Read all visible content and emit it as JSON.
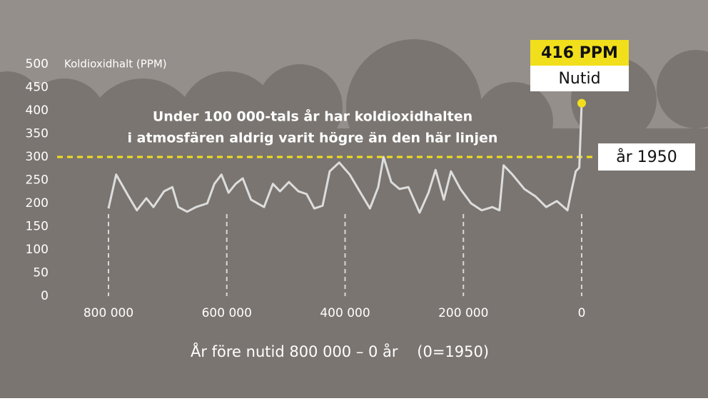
{
  "chart_data": {
    "type": "line",
    "ylabel": "Koldioxidhalt (PPM)",
    "xlabel": "År före nutid 800 000 – 0 år    (0=1950)",
    "annotation": [
      "Under 100 000-tals år har koldioxidhalten",
      "i atmosfären aldrig varit högre än den här linjen"
    ],
    "threshold": {
      "value": 300,
      "label": "år 1950",
      "color": "#f2df1c"
    },
    "callout": {
      "value_label": "416 PPM",
      "label": "Nutid"
    },
    "x": [
      800000,
      787000,
      778000,
      766000,
      752000,
      736000,
      724000,
      706000,
      692000,
      682000,
      667000,
      652000,
      633000,
      621000,
      609000,
      597000,
      585000,
      573000,
      559000,
      537000,
      522000,
      510000,
      495000,
      479000,
      465000,
      452000,
      438000,
      426000,
      410000,
      392000,
      374000,
      358000,
      344000,
      335000,
      322000,
      308000,
      293000,
      274000,
      259000,
      247000,
      233000,
      221000,
      205000,
      187000,
      169000,
      151000,
      139000,
      132000,
      117000,
      97000,
      78000,
      60000,
      42000,
      24000,
      18000,
      10000,
      4000,
      0
    ],
    "series": [
      {
        "name": "CO2",
        "color": "#dddddd",
        "values": [
          189,
          262,
          242,
          215,
          185,
          211,
          192,
          226,
          235,
          192,
          182,
          192,
          200,
          242,
          262,
          223,
          242,
          254,
          208,
          192,
          242,
          226,
          246,
          226,
          220,
          189,
          195,
          269,
          288,
          262,
          223,
          189,
          235,
          300,
          246,
          231,
          235,
          180,
          223,
          272,
          208,
          269,
          231,
          200,
          185,
          192,
          185,
          282,
          262,
          231,
          215,
          192,
          205,
          185,
          223,
          269,
          277,
          416
        ]
      }
    ],
    "xlim": [
      800000,
      0
    ],
    "xticks": [
      {
        "value": 800000,
        "label": "800 000"
      },
      {
        "value": 600000,
        "label": "600 000"
      },
      {
        "value": 400000,
        "label": "400 000"
      },
      {
        "value": 200000,
        "label": "200 000"
      },
      0
    ],
    "ylim": [
      0,
      500
    ],
    "yticks": [
      0,
      50,
      100,
      150,
      200,
      250,
      300,
      350,
      400,
      450,
      500
    ]
  }
}
